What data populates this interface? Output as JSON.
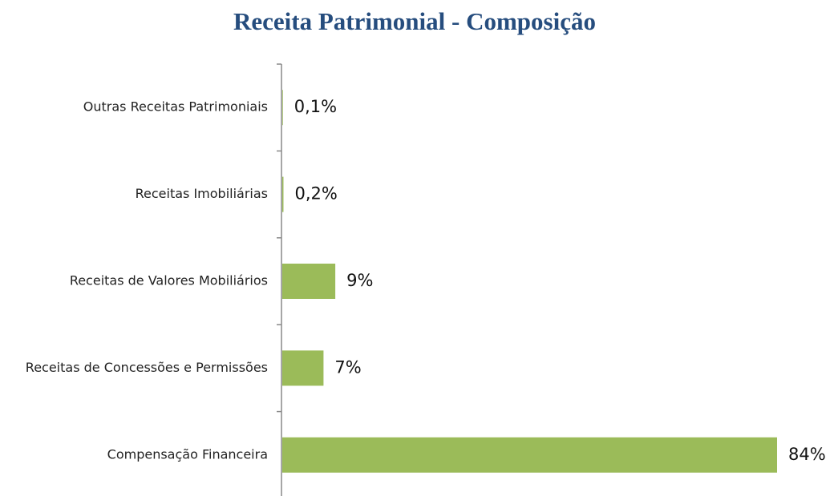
{
  "chart_data": {
    "type": "barh",
    "title": "Receita Patrimonial - Composição",
    "categories": [
      "Outras Receitas Patrimoniais",
      "Receitas Imobiliárias",
      "Receitas de Valores Mobiliários",
      "Receitas de Concessões e Permissões",
      "Compensação Financeira"
    ],
    "values": [
      0.1,
      0.2,
      9,
      7,
      84
    ],
    "value_labels": [
      "0,1%",
      "0,2%",
      "9%",
      "7%",
      "84%"
    ],
    "color": "#9bbb59"
  }
}
